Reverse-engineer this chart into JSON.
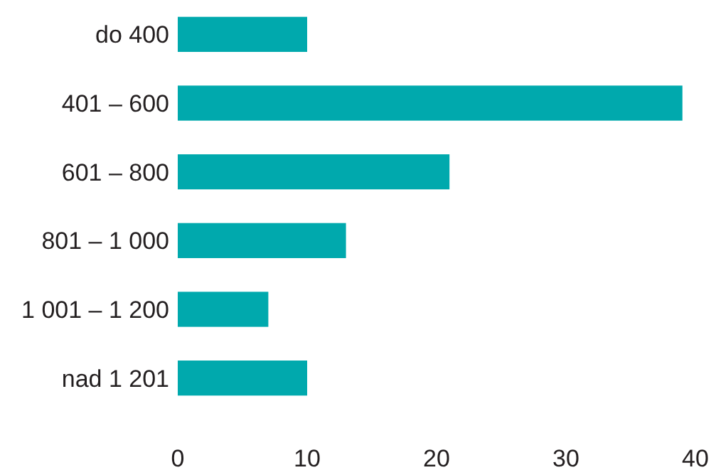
{
  "chart_data": {
    "type": "bar",
    "orientation": "horizontal",
    "categories": [
      "do 400",
      "401 – 600",
      "601 – 800",
      "801 – 1 000",
      "1 001 – 1 200",
      "nad 1 201"
    ],
    "values": [
      10,
      39,
      21,
      13,
      7,
      10
    ],
    "color": "#00a9ad",
    "xlim": [
      0,
      40
    ],
    "xticks": [
      0,
      10,
      20,
      30,
      40
    ],
    "grid": false
  }
}
